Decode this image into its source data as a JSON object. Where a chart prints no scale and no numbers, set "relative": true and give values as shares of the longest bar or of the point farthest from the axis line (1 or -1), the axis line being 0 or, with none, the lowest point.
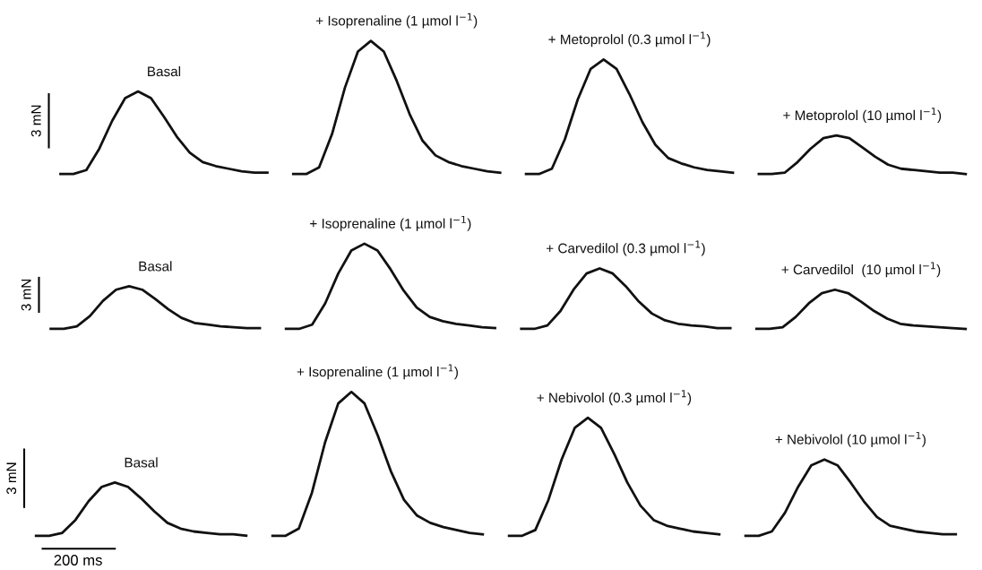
{
  "chart_data": [
    {
      "type": "line",
      "relative": true,
      "legend": false,
      "categories": [
        null,
        null,
        null,
        null,
        null,
        null,
        null,
        null,
        null,
        null,
        null,
        null,
        null,
        null,
        null,
        null,
        null,
        null,
        null,
        null,
        null,
        null,
        null,
        null,
        null,
        null,
        null,
        null,
        null,
        null,
        null,
        null,
        null,
        null,
        null,
        null,
        null,
        null,
        null,
        null,
        null,
        null,
        null,
        null,
        null,
        null,
        null,
        null,
        null,
        null,
        null,
        null,
        null,
        null,
        null,
        null,
        null,
        null,
        null,
        null,
        null,
        null,
        null,
        null,
        null,
        null,
        null,
        null,
        null,
        null,
        null
      ],
      "annotations": [
        "3 mN"
      ],
      "series": [
        {
          "name": "Basal",
          "color": "#111111",
          "values": [
            0,
            0,
            0.03,
            0.19,
            0.4,
            0.57,
            0.62,
            0.57,
            0.43,
            0.28,
            0.16,
            0.09,
            0.06,
            0.04,
            0.02,
            0.01,
            0.01,
            null,
            null,
            null,
            null,
            null,
            null,
            null,
            null,
            null,
            null,
            null,
            null,
            null,
            null,
            null,
            null,
            null,
            null,
            null,
            null,
            null,
            null,
            null,
            null,
            null,
            null,
            null,
            null,
            null,
            null,
            null,
            null,
            null,
            null,
            null,
            null,
            null,
            null,
            null,
            null,
            null,
            null,
            null,
            null,
            null,
            null,
            null,
            null,
            null,
            null,
            null,
            null,
            null,
            null
          ]
        },
        {
          "name": "+ Isoprenaline (1 µmol l$^{−1}$)",
          "color": "#111111",
          "values": [
            null,
            null,
            null,
            null,
            null,
            null,
            null,
            null,
            null,
            null,
            null,
            null,
            null,
            null,
            null,
            null,
            null,
            null,
            0,
            0,
            0.05,
            0.3,
            0.65,
            0.92,
            1,
            0.92,
            0.7,
            0.45,
            0.25,
            0.14,
            0.09,
            0.06,
            0.04,
            0.02,
            0.01,
            null,
            null,
            null,
            null,
            null,
            null,
            null,
            null,
            null,
            null,
            null,
            null,
            null,
            null,
            null,
            null,
            null,
            null,
            null,
            null,
            null,
            null,
            null,
            null,
            null,
            null,
            null,
            null,
            null,
            null,
            null,
            null,
            null,
            null,
            null,
            null
          ]
        },
        {
          "name": "+ Metoprolol (0.3 µmol l$^{−1}$)",
          "color": "#111111",
          "values": [
            null,
            null,
            null,
            null,
            null,
            null,
            null,
            null,
            null,
            null,
            null,
            null,
            null,
            null,
            null,
            null,
            null,
            null,
            null,
            null,
            null,
            null,
            null,
            null,
            null,
            null,
            null,
            null,
            null,
            null,
            null,
            null,
            null,
            null,
            null,
            null,
            0,
            0,
            0.04,
            0.26,
            0.56,
            0.79,
            0.86,
            0.79,
            0.6,
            0.39,
            0.22,
            0.12,
            0.08,
            0.05,
            0.03,
            0.02,
            0.01,
            null,
            null,
            null,
            null,
            null,
            null,
            null,
            null,
            null,
            null,
            null,
            null,
            null,
            null,
            null,
            null,
            null,
            null
          ]
        },
        {
          "name": "+ Metoprolol (10 µmol l$^{−1}$)",
          "color": "#111111",
          "values": [
            null,
            null,
            null,
            null,
            null,
            null,
            null,
            null,
            null,
            null,
            null,
            null,
            null,
            null,
            null,
            null,
            null,
            null,
            null,
            null,
            null,
            null,
            null,
            null,
            null,
            null,
            null,
            null,
            null,
            null,
            null,
            null,
            null,
            null,
            null,
            null,
            null,
            null,
            null,
            null,
            null,
            null,
            null,
            null,
            null,
            null,
            null,
            null,
            null,
            null,
            null,
            null,
            null,
            null,
            0,
            0,
            0.01,
            0.09,
            0.19,
            0.27,
            0.29,
            0.27,
            0.2,
            0.13,
            0.07,
            0.04,
            0.03,
            0.02,
            0.01,
            0.01,
            0
          ]
        }
      ]
    },
    {
      "type": "line",
      "relative": true,
      "legend": false,
      "categories": [
        null,
        null,
        null,
        null,
        null,
        null,
        null,
        null,
        null,
        null,
        null,
        null,
        null,
        null,
        null,
        null,
        null,
        null,
        null,
        null,
        null,
        null,
        null,
        null,
        null,
        null,
        null,
        null,
        null,
        null,
        null,
        null,
        null,
        null,
        null,
        null,
        null,
        null,
        null,
        null,
        null,
        null,
        null,
        null,
        null,
        null,
        null,
        null,
        null,
        null,
        null,
        null,
        null,
        null,
        null,
        null,
        null,
        null,
        null,
        null,
        null,
        null,
        null,
        null,
        null,
        null,
        null,
        null,
        null,
        null,
        null
      ],
      "annotations": [
        "3 mN"
      ],
      "series": [
        {
          "name": "Basal",
          "color": "#111111",
          "values": [
            0,
            0,
            0.03,
            0.15,
            0.33,
            0.46,
            0.5,
            0.46,
            0.35,
            0.23,
            0.13,
            0.07,
            0.05,
            0.03,
            0.02,
            0.01,
            0.01,
            null,
            null,
            null,
            null,
            null,
            null,
            null,
            null,
            null,
            null,
            null,
            null,
            null,
            null,
            null,
            null,
            null,
            null,
            null,
            null,
            null,
            null,
            null,
            null,
            null,
            null,
            null,
            null,
            null,
            null,
            null,
            null,
            null,
            null,
            null,
            null,
            null,
            null,
            null,
            null,
            null,
            null,
            null,
            null,
            null,
            null,
            null,
            null,
            null,
            null,
            null,
            null,
            null,
            null
          ]
        },
        {
          "name": "+ Isoprenaline (1 µmol l$^{−1}$)",
          "color": "#111111",
          "values": [
            null,
            null,
            null,
            null,
            null,
            null,
            null,
            null,
            null,
            null,
            null,
            null,
            null,
            null,
            null,
            null,
            null,
            null,
            0,
            0,
            0.05,
            0.3,
            0.65,
            0.92,
            1,
            0.92,
            0.7,
            0.45,
            0.25,
            0.14,
            0.09,
            0.06,
            0.04,
            0.02,
            0.01,
            null,
            null,
            null,
            null,
            null,
            null,
            null,
            null,
            null,
            null,
            null,
            null,
            null,
            null,
            null,
            null,
            null,
            null,
            null,
            null,
            null,
            null,
            null,
            null,
            null,
            null,
            null,
            null,
            null,
            null,
            null,
            null,
            null,
            null,
            null,
            null
          ]
        },
        {
          "name": "+ Carvedilol (0.3 µmol l$^{−1}$)",
          "color": "#111111",
          "values": [
            null,
            null,
            null,
            null,
            null,
            null,
            null,
            null,
            null,
            null,
            null,
            null,
            null,
            null,
            null,
            null,
            null,
            null,
            null,
            null,
            null,
            null,
            null,
            null,
            null,
            null,
            null,
            null,
            null,
            null,
            null,
            null,
            null,
            null,
            null,
            null,
            0,
            0,
            0.04,
            0.21,
            0.46,
            0.65,
            0.71,
            0.65,
            0.5,
            0.32,
            0.18,
            0.1,
            0.06,
            0.04,
            0.03,
            0.01,
            0.01,
            null,
            null,
            null,
            null,
            null,
            null,
            null,
            null,
            null,
            null,
            null,
            null,
            null,
            null,
            null,
            null,
            null,
            null
          ]
        },
        {
          "name": "+ Carvedilol  (10 µmol l$^{−1}$)",
          "color": "#111111",
          "values": [
            null,
            null,
            null,
            null,
            null,
            null,
            null,
            null,
            null,
            null,
            null,
            null,
            null,
            null,
            null,
            null,
            null,
            null,
            null,
            null,
            null,
            null,
            null,
            null,
            null,
            null,
            null,
            null,
            null,
            null,
            null,
            null,
            null,
            null,
            null,
            null,
            null,
            null,
            null,
            null,
            null,
            null,
            null,
            null,
            null,
            null,
            null,
            null,
            null,
            null,
            null,
            null,
            null,
            null,
            0,
            0,
            0.02,
            0.14,
            0.3,
            0.42,
            0.46,
            0.42,
            0.32,
            0.21,
            0.12,
            0.06,
            0.04,
            0.03,
            0.02,
            0.01,
            0
          ]
        }
      ]
    },
    {
      "type": "line",
      "relative": true,
      "legend": false,
      "categories": [
        null,
        null,
        null,
        null,
        null,
        null,
        null,
        null,
        null,
        null,
        null,
        null,
        null,
        null,
        null,
        null,
        null,
        null,
        null,
        null,
        null,
        null,
        null,
        null,
        null,
        null,
        null,
        null,
        null,
        null,
        null,
        null,
        null,
        null,
        null,
        null,
        null,
        null,
        null,
        null,
        null,
        null,
        null,
        null,
        null,
        null,
        null,
        null,
        null,
        null,
        null,
        null,
        null,
        null,
        null,
        null,
        null,
        null,
        null,
        null,
        null,
        null,
        null,
        null,
        null,
        null,
        null,
        null,
        null,
        null,
        null
      ],
      "annotations": [
        "3 mN",
        "200 ms"
      ],
      "series": [
        {
          "name": "Basal",
          "color": "#111111",
          "values": [
            0,
            0,
            0.02,
            0.11,
            0.24,
            0.34,
            0.37,
            0.34,
            0.26,
            0.17,
            0.09,
            0.05,
            0.03,
            0.02,
            0.01,
            0.01,
            0,
            null,
            null,
            null,
            null,
            null,
            null,
            null,
            null,
            null,
            null,
            null,
            null,
            null,
            null,
            null,
            null,
            null,
            null,
            null,
            null,
            null,
            null,
            null,
            null,
            null,
            null,
            null,
            null,
            null,
            null,
            null,
            null,
            null,
            null,
            null,
            null,
            null,
            null,
            null,
            null,
            null,
            null,
            null,
            null,
            null,
            null,
            null,
            null,
            null,
            null,
            null,
            null,
            null,
            null
          ]
        },
        {
          "name": "+ Isoprenaline (1 µmol l$^{−1}$)",
          "color": "#111111",
          "values": [
            null,
            null,
            null,
            null,
            null,
            null,
            null,
            null,
            null,
            null,
            null,
            null,
            null,
            null,
            null,
            null,
            null,
            null,
            0,
            0,
            0.05,
            0.3,
            0.65,
            0.92,
            1,
            0.92,
            0.7,
            0.45,
            0.25,
            0.14,
            0.09,
            0.06,
            0.04,
            0.02,
            0.01,
            null,
            null,
            null,
            null,
            null,
            null,
            null,
            null,
            null,
            null,
            null,
            null,
            null,
            null,
            null,
            null,
            null,
            null,
            null,
            null,
            null,
            null,
            null,
            null,
            null,
            null,
            null,
            null,
            null,
            null,
            null,
            null,
            null,
            null,
            null,
            null
          ]
        },
        {
          "name": "+ Nebivolol (0.3 µmol l$^{−1}$)",
          "color": "#111111",
          "values": [
            null,
            null,
            null,
            null,
            null,
            null,
            null,
            null,
            null,
            null,
            null,
            null,
            null,
            null,
            null,
            null,
            null,
            null,
            null,
            null,
            null,
            null,
            null,
            null,
            null,
            null,
            null,
            null,
            null,
            null,
            null,
            null,
            null,
            null,
            null,
            null,
            0,
            0,
            0.04,
            0.25,
            0.53,
            0.75,
            0.82,
            0.75,
            0.57,
            0.37,
            0.21,
            0.11,
            0.07,
            0.05,
            0.03,
            0.02,
            0.01,
            null,
            null,
            null,
            null,
            null,
            null,
            null,
            null,
            null,
            null,
            null,
            null,
            null,
            null,
            null,
            null,
            null,
            null
          ]
        },
        {
          "name": "+ Nebivolol (10 µmol l$^{−1}$)",
          "color": "#111111",
          "values": [
            null,
            null,
            null,
            null,
            null,
            null,
            null,
            null,
            null,
            null,
            null,
            null,
            null,
            null,
            null,
            null,
            null,
            null,
            null,
            null,
            null,
            null,
            null,
            null,
            null,
            null,
            null,
            null,
            null,
            null,
            null,
            null,
            null,
            null,
            null,
            null,
            null,
            null,
            null,
            null,
            null,
            null,
            null,
            null,
            null,
            null,
            null,
            null,
            null,
            null,
            null,
            null,
            null,
            null,
            0,
            0,
            0.03,
            0.16,
            0.34,
            0.49,
            0.53,
            0.49,
            0.37,
            0.24,
            0.13,
            0.07,
            0.05,
            0.03,
            0.02,
            0.01,
            0.01
          ]
        }
      ]
    }
  ]
}
